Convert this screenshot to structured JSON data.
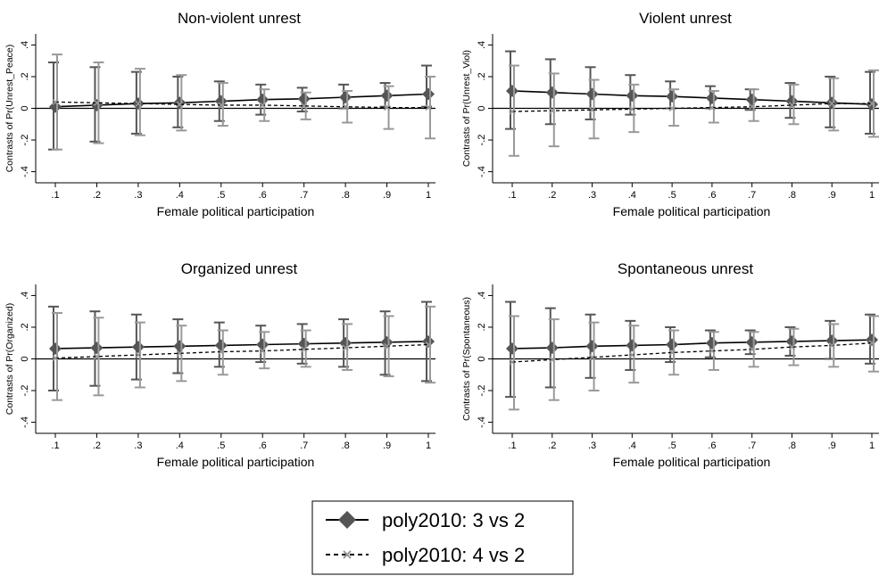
{
  "chart_data": [
    {
      "type": "line",
      "title": "Non-violent unrest",
      "xlabel": "Female political participation",
      "ylabel": "Contrasts of Pr(Unrest_Peace)",
      "x": [
        0.1,
        0.2,
        0.3,
        0.4,
        0.5,
        0.6,
        0.7,
        0.8,
        0.9,
        1.0
      ],
      "x_tick_labels": [
        ".1",
        ".2",
        ".3",
        ".4",
        ".5",
        ".6",
        ".7",
        ".8",
        ".9",
        "1"
      ],
      "y_ticks": [
        -0.4,
        -0.2,
        0,
        0.2,
        0.4
      ],
      "y_tick_labels": [
        "-.4",
        "-.2",
        "0",
        ".2",
        ".4"
      ],
      "ylim": [
        -0.47,
        0.47
      ],
      "series": [
        {
          "name": "poly2010: 3 vs 2",
          "values": [
            0.01,
            0.02,
            0.03,
            0.035,
            0.045,
            0.055,
            0.06,
            0.07,
            0.08,
            0.09
          ],
          "ci_low": [
            -0.26,
            -0.21,
            -0.16,
            -0.12,
            -0.08,
            -0.04,
            -0.02,
            0.0,
            0.01,
            0.01
          ],
          "ci_high": [
            0.29,
            0.26,
            0.23,
            0.2,
            0.17,
            0.15,
            0.13,
            0.15,
            0.16,
            0.27
          ]
        },
        {
          "name": "poly2010: 4 vs 2",
          "values": [
            0.04,
            0.035,
            0.03,
            0.025,
            0.02,
            0.02,
            0.015,
            0.01,
            0.005,
            0.005
          ],
          "ci_low": [
            -0.26,
            -0.22,
            -0.17,
            -0.14,
            -0.11,
            -0.08,
            -0.07,
            -0.09,
            -0.13,
            -0.19
          ],
          "ci_high": [
            0.34,
            0.29,
            0.25,
            0.21,
            0.16,
            0.12,
            0.1,
            0.11,
            0.14,
            0.2
          ]
        }
      ]
    },
    {
      "type": "line",
      "title": "Violent unrest",
      "xlabel": "Female political participation",
      "ylabel": "Contrasts of Pr(Unrest_Viol)",
      "x": [
        0.1,
        0.2,
        0.3,
        0.4,
        0.5,
        0.6,
        0.7,
        0.8,
        0.9,
        1.0
      ],
      "x_tick_labels": [
        ".1",
        ".2",
        ".3",
        ".4",
        ".5",
        ".6",
        ".7",
        ".8",
        ".9",
        "1"
      ],
      "y_ticks": [
        -0.4,
        -0.2,
        0,
        0.2,
        0.4
      ],
      "y_tick_labels": [
        "-.4",
        "-.2",
        "0",
        ".2",
        ".4"
      ],
      "ylim": [
        -0.47,
        0.47
      ],
      "series": [
        {
          "name": "poly2010: 3 vs 2",
          "values": [
            0.11,
            0.1,
            0.09,
            0.08,
            0.075,
            0.065,
            0.055,
            0.045,
            0.035,
            0.025
          ],
          "ci_low": [
            -0.13,
            -0.1,
            -0.07,
            -0.04,
            0.0,
            0.0,
            -0.01,
            -0.06,
            -0.12,
            -0.16
          ],
          "ci_high": [
            0.36,
            0.31,
            0.26,
            0.21,
            0.17,
            0.14,
            0.12,
            0.16,
            0.2,
            0.23
          ]
        },
        {
          "name": "poly2010: 4 vs 2",
          "values": [
            -0.02,
            -0.015,
            -0.01,
            -0.005,
            0.0,
            0.005,
            0.01,
            0.02,
            0.03,
            0.03
          ],
          "ci_low": [
            -0.3,
            -0.24,
            -0.19,
            -0.15,
            -0.11,
            -0.09,
            -0.08,
            -0.1,
            -0.14,
            -0.18
          ],
          "ci_high": [
            0.27,
            0.22,
            0.18,
            0.15,
            0.12,
            0.11,
            0.12,
            0.15,
            0.19,
            0.24
          ]
        }
      ]
    },
    {
      "type": "line",
      "title": "Organized unrest",
      "xlabel": "Female political participation",
      "ylabel": "Contrasts of Pr(Organized)",
      "x": [
        0.1,
        0.2,
        0.3,
        0.4,
        0.5,
        0.6,
        0.7,
        0.8,
        0.9,
        1.0
      ],
      "x_tick_labels": [
        ".1",
        ".2",
        ".3",
        ".4",
        ".5",
        ".6",
        ".7",
        ".8",
        ".9",
        "1"
      ],
      "y_ticks": [
        -0.4,
        -0.2,
        0,
        0.2,
        0.4
      ],
      "y_tick_labels": [
        "-.4",
        "-.2",
        "0",
        ".2",
        ".4"
      ],
      "ylim": [
        -0.47,
        0.47
      ],
      "series": [
        {
          "name": "poly2010: 3 vs 2",
          "values": [
            0.065,
            0.07,
            0.075,
            0.08,
            0.085,
            0.09,
            0.095,
            0.1,
            0.105,
            0.11
          ],
          "ci_low": [
            -0.2,
            -0.17,
            -0.13,
            -0.09,
            -0.05,
            -0.02,
            -0.03,
            -0.05,
            -0.1,
            -0.14
          ],
          "ci_high": [
            0.33,
            0.3,
            0.28,
            0.25,
            0.23,
            0.21,
            0.22,
            0.25,
            0.3,
            0.36
          ]
        },
        {
          "name": "poly2010: 4 vs 2",
          "values": [
            0.005,
            0.015,
            0.025,
            0.035,
            0.045,
            0.05,
            0.06,
            0.07,
            0.08,
            0.09
          ],
          "ci_low": [
            -0.26,
            -0.23,
            -0.18,
            -0.14,
            -0.1,
            -0.06,
            -0.05,
            -0.07,
            -0.11,
            -0.15
          ],
          "ci_high": [
            0.29,
            0.26,
            0.23,
            0.21,
            0.18,
            0.17,
            0.18,
            0.22,
            0.27,
            0.33
          ]
        }
      ]
    },
    {
      "type": "line",
      "title": "Spontaneous unrest",
      "xlabel": "Female political participation",
      "ylabel": "Contrasts of Pr(Spontaneous)",
      "x": [
        0.1,
        0.2,
        0.3,
        0.4,
        0.5,
        0.6,
        0.7,
        0.8,
        0.9,
        1.0
      ],
      "x_tick_labels": [
        ".1",
        ".2",
        ".3",
        ".4",
        ".5",
        ".6",
        ".7",
        ".8",
        ".9",
        "1"
      ],
      "y_ticks": [
        -0.4,
        -0.2,
        0,
        0.2,
        0.4
      ],
      "y_tick_labels": [
        "-.4",
        "-.2",
        "0",
        ".2",
        ".4"
      ],
      "ylim": [
        -0.47,
        0.47
      ],
      "series": [
        {
          "name": "poly2010: 3 vs 2",
          "values": [
            0.065,
            0.07,
            0.08,
            0.085,
            0.09,
            0.1,
            0.105,
            0.11,
            0.115,
            0.12
          ],
          "ci_low": [
            -0.24,
            -0.18,
            -0.12,
            -0.07,
            -0.02,
            0.01,
            0.03,
            0.02,
            0.0,
            -0.03
          ],
          "ci_high": [
            0.36,
            0.32,
            0.28,
            0.24,
            0.2,
            0.18,
            0.18,
            0.2,
            0.24,
            0.28
          ]
        },
        {
          "name": "poly2010: 4 vs 2",
          "values": [
            -0.02,
            -0.005,
            0.01,
            0.025,
            0.04,
            0.05,
            0.06,
            0.075,
            0.085,
            0.1
          ],
          "ci_low": [
            -0.32,
            -0.26,
            -0.2,
            -0.15,
            -0.1,
            -0.07,
            -0.05,
            -0.04,
            -0.05,
            -0.08
          ],
          "ci_high": [
            0.27,
            0.25,
            0.23,
            0.21,
            0.18,
            0.17,
            0.17,
            0.19,
            0.22,
            0.27
          ]
        }
      ]
    }
  ],
  "legend": {
    "placement": "bottom-center",
    "items": [
      {
        "label": "poly2010: 3 vs 2",
        "style": "solid line, diamond marker"
      },
      {
        "label": "poly2010: 4 vs 2",
        "style": "dashed line, x marker"
      }
    ]
  },
  "colors": {
    "series1_line": "#000000",
    "series1_marker": "#555555",
    "series2_line": "#000000",
    "series2_marker": "#999999",
    "ci": "#999999",
    "axis": "#000000"
  }
}
